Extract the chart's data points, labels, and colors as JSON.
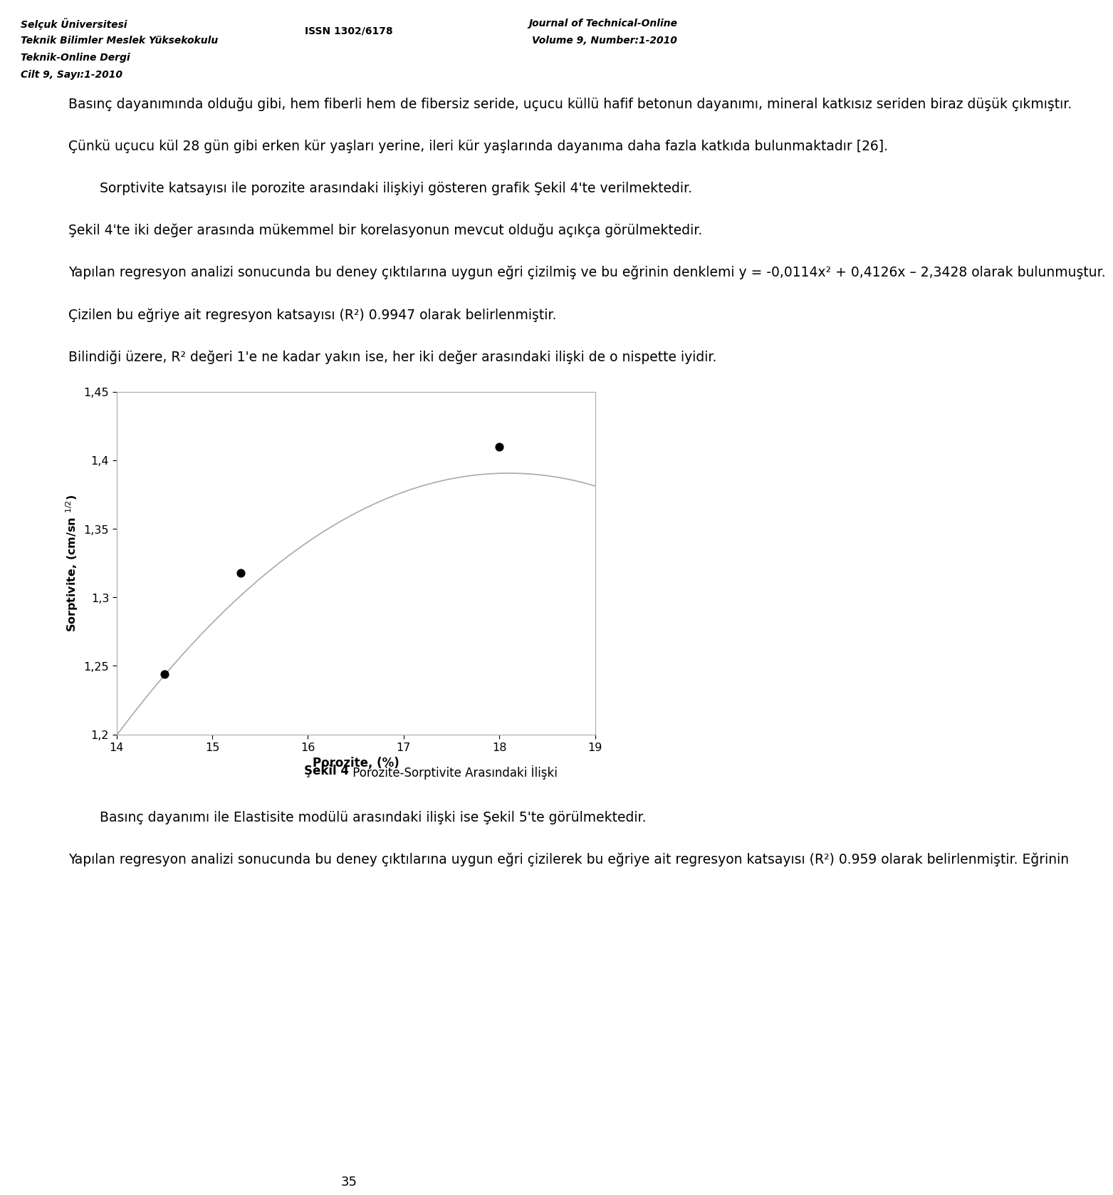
{
  "scatter_x": [
    14.5,
    15.3,
    18.0
  ],
  "scatter_y": [
    1.244,
    1.318,
    1.41
  ],
  "xlim": [
    14,
    19
  ],
  "ylim": [
    1.2,
    1.45
  ],
  "xticks": [
    14,
    15,
    16,
    17,
    18,
    19
  ],
  "yticks": [
    1.2,
    1.25,
    1.3,
    1.35,
    1.4,
    1.45
  ],
  "curve_coeffs": [
    -0.0114,
    0.4126,
    -2.3428
  ],
  "curve_color": "#aaaaaa",
  "scatter_color": "#000000",
  "background_color": "#ffffff",
  "header_bg": "#d3d3d3",
  "marker_size": 60,
  "xlabel": "Porozite, (%)",
  "ylabel": "Sorptivite, (cm/sn $^{1/2}$)",
  "caption_bold": "Şekil 4",
  "caption_normal": " Porozite-Sorptivite Arasındaki İlişki",
  "header_left_line1": "Selçuk Üniversitesi",
  "header_left_line2": "Teknik Bilimler Meslek Yüksekokulu",
  "header_left_line3": "Teknik-Online Dergi",
  "header_left_line4": "Cilt 9, Sayı:1-2010",
  "header_mid": "ISSN 1302/6178",
  "header_right_line1": "Journal of Technical-Online",
  "header_right_line2": "Volume 9, Number:1-2010",
  "para1": "Basınç dayanımında olduğu gibi, hem fiberli hem de fibersiz seride, uçucu küllü hafif betonun dayanımı, mineral katkısız seriden biraz düşük çıkmıştır.",
  "para2_indent": "Çünkü uçucu kül 28 gün gibi erken kür yaşları yerine, ileri kür yaşlarında dayanıma daha fazla katkıda bulunmaktadır [26].",
  "para3_indent": "Sorptivite katsayısı ile porozite arasındaki ilişkiyi gösteren grafik Şekil 4'te verilmektedir.",
  "para4": "Şekil 4'te iki değer arasında mükemmel bir korelasyonun mevcut olduğu açıkça görülmektedir.",
  "para5": "Yapılan regresyon analizi sonucunda bu deney çıktılarına uygun eğri çizilmiş ve bu eğrinin denklemi y = -0,0114x² + 0,4126x – 2,3428 olarak bulunmuştur.",
  "para6": "Çizilen bu eğriye ait regresyon katsayısı (R²) 0.9947 olarak belirlenmiştir.",
  "para7": "Bilindiği üzere, R² değeri 1'e ne kadar yakın ise, her iki değer arasındaki ilişki de o nispette iyidir.",
  "para8_indent": "Basınç dayanımı ile Elastisite modülü arasındaki ilişki ise Şekil 5'te görülmektedir.",
  "para9": "Yapılan regresyon analizi sonucunda bu deney çıktılarına uygun eğri çizilerek bu eğriye ait regresyon katsayısı (R²) 0.959 olarak belirlenmiştir. Eğrinin",
  "page_number": "35"
}
